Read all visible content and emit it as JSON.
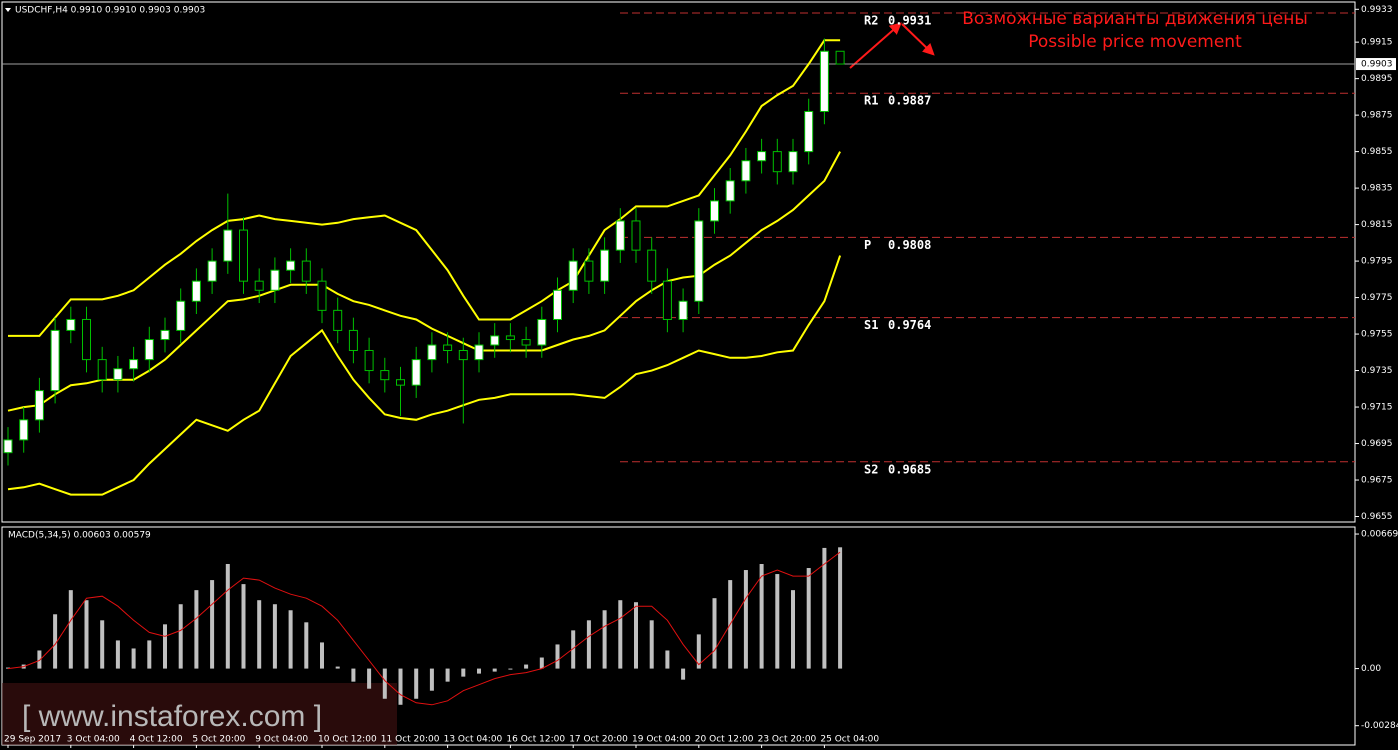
{
  "chart_data": [
    {
      "type": "candlestick",
      "title": "USDCHF,H4  0.9910 0.9910 0.9903 0.9903",
      "categories": [
        "29 Sep 2017",
        null,
        null,
        null,
        "3 Oct 04:00",
        null,
        null,
        null,
        "4 Oct 12:00",
        null,
        null,
        null,
        "5 Oct 20:00",
        null,
        null,
        null,
        "9 Oct 04:00",
        null,
        null,
        null,
        "10 Oct 12:00",
        null,
        null,
        null,
        "11 Oct 20:00",
        null,
        null,
        null,
        "13 Oct 04:00",
        null,
        null,
        null,
        "16 Oct 12:00",
        null,
        null,
        null,
        "17 Oct 20:00",
        null,
        null,
        null,
        "19 Oct 04:00",
        null,
        null,
        null,
        "20 Oct 12:00",
        null,
        null,
        null,
        "23 Oct 20:00",
        null,
        null,
        null,
        "25 Oct 04:00",
        null
      ],
      "open": [
        0.969,
        0.9697,
        0.9708,
        0.9724,
        0.9757,
        0.9763,
        0.9741,
        0.973,
        0.9736,
        0.9741,
        0.9752,
        0.9757,
        0.9773,
        0.9784,
        0.9795,
        0.9812,
        0.9784,
        0.9779,
        0.979,
        0.9795,
        0.9784,
        0.9768,
        0.9757,
        0.9746,
        0.9735,
        0.973,
        0.9727,
        0.9741,
        0.9749,
        0.9746,
        0.9741,
        0.9749,
        0.9754,
        0.9752,
        0.9749,
        0.9763,
        0.9779,
        0.9795,
        0.9784,
        0.9801,
        0.9817,
        0.9801,
        0.9784,
        0.9763,
        0.9773,
        0.9817,
        0.9828,
        0.9839,
        0.985,
        0.9855,
        0.9844,
        0.9855,
        0.9877,
        0.991
      ],
      "high": [
        0.9704,
        0.9715,
        0.9731,
        0.9764,
        0.977,
        0.977,
        0.9748,
        0.9743,
        0.9748,
        0.9759,
        0.9764,
        0.978,
        0.9791,
        0.9802,
        0.9832,
        0.9819,
        0.9791,
        0.9797,
        0.9802,
        0.9802,
        0.9791,
        0.9775,
        0.9764,
        0.9753,
        0.9742,
        0.9737,
        0.9748,
        0.9756,
        0.9756,
        0.9753,
        0.9756,
        0.9761,
        0.9761,
        0.9759,
        0.977,
        0.9786,
        0.9802,
        0.9802,
        0.9808,
        0.9824,
        0.9824,
        0.9808,
        0.9791,
        0.978,
        0.9824,
        0.9835,
        0.9846,
        0.9857,
        0.9862,
        0.9862,
        0.9862,
        0.9884,
        0.9917,
        0.991
      ],
      "low": [
        0.9683,
        0.969,
        0.9701,
        0.9717,
        0.975,
        0.9734,
        0.9723,
        0.9723,
        0.9729,
        0.9734,
        0.9745,
        0.975,
        0.9766,
        0.9777,
        0.9788,
        0.9777,
        0.9772,
        0.9772,
        0.9783,
        0.9777,
        0.9761,
        0.975,
        0.9739,
        0.9728,
        0.9723,
        0.971,
        0.972,
        0.9734,
        0.9739,
        0.9706,
        0.9734,
        0.9742,
        0.9745,
        0.9742,
        0.9742,
        0.9756,
        0.9772,
        0.9777,
        0.9777,
        0.9794,
        0.9794,
        0.9777,
        0.9756,
        0.9756,
        0.9766,
        0.981,
        0.9821,
        0.9832,
        0.9843,
        0.9837,
        0.9837,
        0.9848,
        0.987,
        0.9903
      ],
      "close": [
        0.9697,
        0.9708,
        0.9724,
        0.9757,
        0.9763,
        0.9741,
        0.973,
        0.9736,
        0.9741,
        0.9752,
        0.9757,
        0.9773,
        0.9784,
        0.9795,
        0.9812,
        0.9784,
        0.9779,
        0.979,
        0.9795,
        0.9784,
        0.9768,
        0.9757,
        0.9746,
        0.9735,
        0.973,
        0.9727,
        0.9741,
        0.9749,
        0.9746,
        0.9741,
        0.9749,
        0.9754,
        0.9752,
        0.9749,
        0.9763,
        0.9779,
        0.9795,
        0.9784,
        0.9801,
        0.9817,
        0.9801,
        0.9784,
        0.9763,
        0.9773,
        0.9817,
        0.9828,
        0.9839,
        0.985,
        0.9855,
        0.9844,
        0.9855,
        0.9877,
        0.991,
        0.9903
      ],
      "bull_color": "#ffffff",
      "bear_color": "#000000",
      "wick_color": "#00c000",
      "bands": {
        "color": "#ffff00",
        "upper": [
          0.9754,
          0.9754,
          0.9754,
          0.9764,
          0.9774,
          0.9774,
          0.9774,
          0.9776,
          0.9779,
          0.9786,
          0.9793,
          0.9799,
          0.9806,
          0.9812,
          0.9817,
          0.9818,
          0.982,
          0.9818,
          0.9817,
          0.9816,
          0.9815,
          0.9816,
          0.9818,
          0.9819,
          0.982,
          0.9816,
          0.9812,
          0.9801,
          0.979,
          0.9776,
          0.9763,
          0.9763,
          0.9763,
          0.9768,
          0.9773,
          0.9779,
          0.9784,
          0.9798,
          0.9812,
          0.9818,
          0.9825,
          0.9825,
          0.9825,
          0.9828,
          0.9831,
          0.9842,
          0.9853,
          0.9866,
          0.988,
          0.9886,
          0.9891,
          0.9903,
          0.9916,
          0.9916
        ],
        "middle": [
          0.9713,
          0.9715,
          0.9716,
          0.9722,
          0.9727,
          0.9728,
          0.973,
          0.973,
          0.973,
          0.9735,
          0.9741,
          0.9749,
          0.9757,
          0.9765,
          0.9773,
          0.9774,
          0.9776,
          0.9779,
          0.9782,
          0.9782,
          0.9782,
          0.9777,
          0.9773,
          0.9771,
          0.9768,
          0.9765,
          0.9763,
          0.9758,
          0.9754,
          0.975,
          0.9746,
          0.9746,
          0.9746,
          0.9746,
          0.9746,
          0.9749,
          0.9752,
          0.9754,
          0.9757,
          0.9765,
          0.9773,
          0.9779,
          0.9784,
          0.9786,
          0.9787,
          0.9793,
          0.9798,
          0.9805,
          0.9812,
          0.9817,
          0.9823,
          0.9831,
          0.9839,
          0.9855
        ],
        "lower": [
          0.967,
          0.9671,
          0.9673,
          0.967,
          0.9667,
          0.9667,
          0.9667,
          0.9671,
          0.9675,
          0.9684,
          0.9692,
          0.97,
          0.9708,
          0.9705,
          0.9702,
          0.9708,
          0.9713,
          0.9728,
          0.9743,
          0.975,
          0.9757,
          0.9743,
          0.973,
          0.972,
          0.9711,
          0.9709,
          0.9708,
          0.9711,
          0.9713,
          0.9716,
          0.9719,
          0.972,
          0.9722,
          0.9722,
          0.9722,
          0.9722,
          0.9722,
          0.9721,
          0.972,
          0.9726,
          0.9733,
          0.9735,
          0.9738,
          0.9742,
          0.9746,
          0.9744,
          0.9742,
          0.9742,
          0.9743,
          0.9745,
          0.9746,
          0.976,
          0.9773,
          0.9798
        ]
      },
      "levels": [
        {
          "name": "R2",
          "value": 0.9931
        },
        {
          "name": "R1",
          "value": 0.9887
        },
        {
          "name": "P",
          "value": 0.9808
        },
        {
          "name": "S1",
          "value": 0.9764
        },
        {
          "name": "S2",
          "value": 0.9685
        }
      ],
      "level_color": "#c03030",
      "current_price": 0.9903,
      "annotations": [
        "Возможные варианты движения цены",
        "Possible price movement"
      ],
      "annotation_color": "#ff1a1a",
      "ylim": [
        0.9652,
        0.9937
      ],
      "yticks": [
        0.9933,
        0.9915,
        0.9895,
        0.9875,
        0.9855,
        0.9835,
        0.9815,
        0.9795,
        0.9775,
        0.9755,
        0.9735,
        0.9715,
        0.9695,
        0.9675,
        0.9655
      ]
    },
    {
      "type": "macd",
      "title": "MACD(5,34,5) 0.00603 0.00579",
      "histogram": {
        "color": "#c0c0c0",
        "values": [
          5e-05,
          0.0002,
          0.0009,
          0.0027,
          0.0039,
          0.0034,
          0.0024,
          0.0014,
          0.001,
          0.0014,
          0.0022,
          0.0032,
          0.0039,
          0.0044,
          0.0052,
          0.0042,
          0.0034,
          0.0032,
          0.0029,
          0.0023,
          0.0013,
          0.0001,
          -0.00065,
          -0.001,
          -0.0015,
          -0.0018,
          -0.0015,
          -0.0011,
          -0.00065,
          -0.0004,
          -0.00025,
          -0.00015,
          -5e-05,
          0.0002,
          0.00055,
          0.0012,
          0.0019,
          0.0024,
          0.0029,
          0.0034,
          0.0033,
          0.0024,
          0.0009,
          -0.00055,
          0.0017,
          0.0035,
          0.0044,
          0.0049,
          0.0052,
          0.0047,
          0.0039,
          0.005,
          0.006,
          0.00603
        ]
      },
      "signal": {
        "color": "#e01010",
        "values": [
          0.0,
          0.0001,
          0.0004,
          0.0012,
          0.0024,
          0.0035,
          0.0036,
          0.0031,
          0.0024,
          0.0018,
          0.0016,
          0.0019,
          0.0025,
          0.0032,
          0.0039,
          0.0045,
          0.0044,
          0.004,
          0.0037,
          0.0035,
          0.0031,
          0.0024,
          0.0014,
          0.0004,
          -0.0006,
          -0.0013,
          -0.0017,
          -0.0018,
          -0.0016,
          -0.0011,
          -0.0008,
          -0.0005,
          -0.0003,
          -0.0002,
          0.0,
          0.0004,
          0.001,
          0.0016,
          0.0021,
          0.0025,
          0.0031,
          0.0031,
          0.0024,
          0.0012,
          0.0002,
          0.0009,
          0.0022,
          0.0035,
          0.0046,
          0.0049,
          0.0046,
          0.0046,
          0.0052,
          0.00579
        ]
      },
      "ylim": [
        -0.0038,
        0.00704
      ],
      "yticks": [
        0.00669,
        {
          "value": 0,
          "label": "0.00"
        },
        -0.00284
      ]
    }
  ],
  "watermark": "[ www.instaforex.com ]"
}
